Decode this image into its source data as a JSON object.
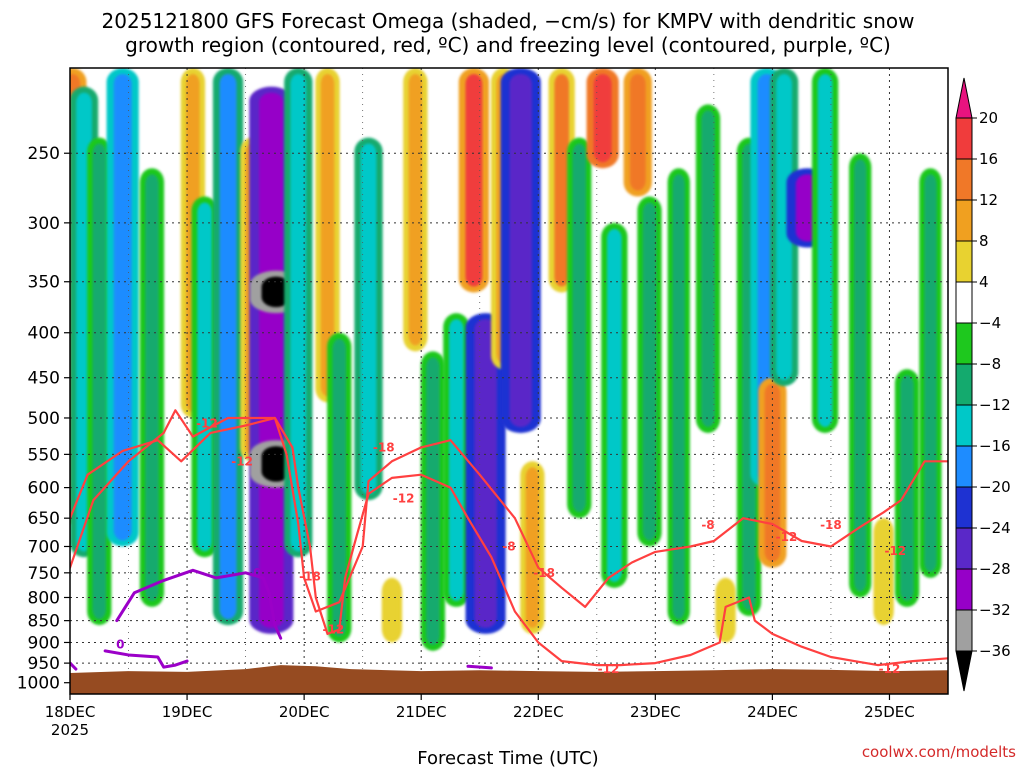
{
  "colors": {
    "snow_growth_contour": "#ff4040",
    "freezing_contour": "#9b00c8",
    "ground": "#964b21",
    "credit": "#d42a2a"
  },
  "chart_data": {
    "type": "heatmap",
    "title_lines": [
      "2025121800 GFS Forecast Omega (shaded, −cm/s) for KMPV with dendritic snow",
      "growth region (contoured, red, ºC) and freezing level (contoured, purple, ºC)"
    ],
    "xlabel": "Forecast Time (UTC)",
    "xticks": [
      {
        "label": "18DEC",
        "sub": "2025",
        "day": 0
      },
      {
        "label": "19DEC",
        "sub": "",
        "day": 1
      },
      {
        "label": "20DEC",
        "sub": "",
        "day": 2
      },
      {
        "label": "21DEC",
        "sub": "",
        "day": 3
      },
      {
        "label": "22DEC",
        "sub": "",
        "day": 4
      },
      {
        "label": "23DEC",
        "sub": "",
        "day": 5
      },
      {
        "label": "24DEC",
        "sub": "",
        "day": 6
      },
      {
        "label": "25DEC",
        "sub": "",
        "day": 7
      }
    ],
    "xlim_days": [
      0,
      7.5
    ],
    "y_scale": "log-pressure (hPa), inverted",
    "ylim_hpa": [
      1030,
      200
    ],
    "yticks": [
      250,
      300,
      350,
      400,
      450,
      500,
      550,
      600,
      650,
      700,
      750,
      800,
      850,
      900,
      950,
      1000
    ],
    "colorbar": {
      "levels": [
        20,
        16,
        12,
        8,
        4,
        -4,
        -8,
        -12,
        -16,
        -20,
        -24,
        -28,
        -32,
        -36
      ],
      "bins": [
        {
          "range": ">20",
          "color": "#e8137f"
        },
        {
          "range": "16 to 20",
          "color": "#f03c3c"
        },
        {
          "range": "12 to 16",
          "color": "#f07828"
        },
        {
          "range": "8 to 12",
          "color": "#f0a020"
        },
        {
          "range": "4 to 8",
          "color": "#e8d230"
        },
        {
          "range": "-4 to 4",
          "color": "#ffffff"
        },
        {
          "range": "-8 to -4",
          "color": "#1ec81e"
        },
        {
          "range": "-12 to -8",
          "color": "#14aa6e"
        },
        {
          "range": "-16 to -12",
          "color": "#00c8c8"
        },
        {
          "range": "-20 to -16",
          "color": "#1e8cff"
        },
        {
          "range": "-24 to -20",
          "color": "#1e32d2"
        },
        {
          "range": "-28 to -24",
          "color": "#5a28c8"
        },
        {
          "range": "-32 to -28",
          "color": "#9600c8"
        },
        {
          "range": "-36 to -32",
          "color": "#a0a0a0"
        },
        {
          "range": "<-36",
          "color": "#000000"
        }
      ]
    },
    "shading_bands": [
      {
        "day": 0.02,
        "p_top": 200,
        "p_bot": 660,
        "value": 14
      },
      {
        "day": 0.12,
        "p_top": 210,
        "p_bot": 720,
        "value": -14
      },
      {
        "day": 0.25,
        "p_top": 240,
        "p_bot": 860,
        "value": -10
      },
      {
        "day": 0.45,
        "p_top": 200,
        "p_bot": 700,
        "value": -18
      },
      {
        "day": 0.7,
        "p_top": 260,
        "p_bot": 820,
        "value": -10
      },
      {
        "day": 1.05,
        "p_top": 200,
        "p_bot": 500,
        "value": 10
      },
      {
        "day": 1.15,
        "p_top": 280,
        "p_bot": 720,
        "value": -12
      },
      {
        "day": 1.35,
        "p_top": 200,
        "p_bot": 860,
        "value": -16
      },
      {
        "day": 1.55,
        "p_top": 240,
        "p_bot": 560,
        "value": 8
      },
      {
        "day": 1.72,
        "p_top": 210,
        "p_bot": 880,
        "value": -30
      },
      {
        "day": 1.76,
        "p_top": 530,
        "p_bot": 600,
        "value": -38
      },
      {
        "day": 1.76,
        "p_top": 340,
        "p_bot": 380,
        "value": -38
      },
      {
        "day": 1.95,
        "p_top": 200,
        "p_bot": 720,
        "value": -14
      },
      {
        "day": 2.2,
        "p_top": 200,
        "p_bot": 480,
        "value": 10
      },
      {
        "day": 2.3,
        "p_top": 400,
        "p_bot": 900,
        "value": -10
      },
      {
        "day": 2.55,
        "p_top": 240,
        "p_bot": 620,
        "value": -14
      },
      {
        "day": 2.75,
        "p_top": 760,
        "p_bot": 900,
        "value": 6
      },
      {
        "day": 2.95,
        "p_top": 200,
        "p_bot": 420,
        "value": 10
      },
      {
        "day": 3.1,
        "p_top": 420,
        "p_bot": 920,
        "value": -10
      },
      {
        "day": 3.3,
        "p_top": 380,
        "p_bot": 820,
        "value": -12
      },
      {
        "day": 3.45,
        "p_top": 200,
        "p_bot": 360,
        "value": 16
      },
      {
        "day": 3.55,
        "p_top": 380,
        "p_bot": 880,
        "value": -26
      },
      {
        "day": 3.7,
        "p_top": 200,
        "p_bot": 440,
        "value": 10
      },
      {
        "day": 3.85,
        "p_top": 200,
        "p_bot": 520,
        "value": -26
      },
      {
        "day": 3.95,
        "p_top": 560,
        "p_bot": 880,
        "value": 10
      },
      {
        "day": 4.2,
        "p_top": 200,
        "p_bot": 360,
        "value": 12
      },
      {
        "day": 4.35,
        "p_top": 240,
        "p_bot": 650,
        "value": -10
      },
      {
        "day": 4.55,
        "p_top": 200,
        "p_bot": 260,
        "value": 18
      },
      {
        "day": 4.65,
        "p_top": 300,
        "p_bot": 780,
        "value": -12
      },
      {
        "day": 4.85,
        "p_top": 200,
        "p_bot": 280,
        "value": 14
      },
      {
        "day": 4.95,
        "p_top": 280,
        "p_bot": 700,
        "value": -10
      },
      {
        "day": 5.2,
        "p_top": 260,
        "p_bot": 860,
        "value": -8
      },
      {
        "day": 5.45,
        "p_top": 220,
        "p_bot": 520,
        "value": -10
      },
      {
        "day": 5.6,
        "p_top": 760,
        "p_bot": 900,
        "value": 6
      },
      {
        "day": 5.8,
        "p_top": 240,
        "p_bot": 840,
        "value": -10
      },
      {
        "day": 5.95,
        "p_top": 200,
        "p_bot": 600,
        "value": -18
      },
      {
        "day": 6.0,
        "p_top": 450,
        "p_bot": 740,
        "value": 14
      },
      {
        "day": 6.1,
        "p_top": 200,
        "p_bot": 460,
        "value": -14
      },
      {
        "day": 6.3,
        "p_top": 260,
        "p_bot": 320,
        "value": -28
      },
      {
        "day": 6.45,
        "p_top": 200,
        "p_bot": 520,
        "value": -12
      },
      {
        "day": 6.75,
        "p_top": 250,
        "p_bot": 800,
        "value": -8
      },
      {
        "day": 6.95,
        "p_top": 650,
        "p_bot": 860,
        "value": 6
      },
      {
        "day": 7.15,
        "p_top": 440,
        "p_bot": 820,
        "value": -10
      },
      {
        "day": 7.35,
        "p_top": 260,
        "p_bot": 760,
        "value": -8
      }
    ],
    "contours": [
      {
        "kind": "dendritic",
        "level": -12,
        "points": [
          [
            0,
            650
          ],
          [
            0.15,
            580
          ],
          [
            0.45,
            545
          ],
          [
            0.75,
            530
          ],
          [
            0.95,
            560
          ],
          [
            1.2,
            520
          ],
          [
            1.5,
            510
          ],
          [
            1.75,
            500
          ],
          [
            1.9,
            540
          ],
          [
            1.95,
            600
          ],
          [
            2.05,
            700
          ],
          [
            2.1,
            800
          ],
          [
            2.2,
            880
          ],
          [
            2.3,
            870
          ],
          [
            2.35,
            760
          ],
          [
            2.45,
            680
          ],
          [
            2.55,
            610
          ],
          [
            2.75,
            585
          ],
          [
            3.0,
            580
          ],
          [
            3.25,
            600
          ],
          [
            3.4,
            650
          ],
          [
            3.6,
            720
          ],
          [
            3.8,
            830
          ],
          [
            4.0,
            900
          ],
          [
            4.2,
            945
          ],
          [
            4.5,
            955
          ],
          [
            4.7,
            955
          ],
          [
            5.0,
            950
          ],
          [
            5.3,
            930
          ],
          [
            5.55,
            900
          ],
          [
            5.6,
            820
          ],
          [
            5.8,
            800
          ],
          [
            5.85,
            850
          ],
          [
            6.0,
            880
          ],
          [
            6.25,
            910
          ],
          [
            6.5,
            935
          ],
          [
            6.7,
            945
          ],
          [
            6.9,
            955
          ],
          [
            7.2,
            945
          ],
          [
            7.5,
            938
          ]
        ]
      },
      {
        "kind": "dendritic",
        "level": -18,
        "points": [
          [
            0,
            740
          ],
          [
            0.2,
            620
          ],
          [
            0.5,
            560
          ],
          [
            0.8,
            520
          ],
          [
            0.9,
            490
          ],
          [
            1.05,
            525
          ],
          [
            1.35,
            500
          ],
          [
            1.75,
            500
          ],
          [
            1.85,
            550
          ],
          [
            1.95,
            660
          ],
          [
            2.0,
            760
          ],
          [
            2.1,
            830
          ],
          [
            2.3,
            810
          ],
          [
            2.5,
            700
          ],
          [
            2.55,
            590
          ],
          [
            2.75,
            560
          ],
          [
            3.0,
            540
          ],
          [
            3.25,
            530
          ],
          [
            3.5,
            580
          ],
          [
            3.8,
            650
          ],
          [
            4.0,
            740
          ],
          [
            4.2,
            780
          ],
          [
            4.4,
            820
          ],
          [
            4.6,
            760
          ],
          [
            4.8,
            730
          ],
          [
            5.0,
            710
          ],
          [
            5.3,
            700
          ],
          [
            5.5,
            690
          ],
          [
            5.75,
            650
          ],
          [
            6.0,
            660
          ],
          [
            6.25,
            690
          ],
          [
            6.5,
            700
          ],
          [
            6.75,
            665
          ],
          [
            6.95,
            640
          ],
          [
            7.1,
            620
          ],
          [
            7.3,
            560
          ],
          [
            7.5,
            560
          ]
        ]
      },
      {
        "kind": "freezing",
        "level": 0,
        "points": [
          [
            0.4,
            850
          ],
          [
            0.55,
            790
          ],
          [
            0.8,
            765
          ],
          [
            1.05,
            745
          ],
          [
            1.25,
            760
          ],
          [
            1.5,
            750
          ],
          [
            1.65,
            760
          ],
          [
            1.7,
            790
          ],
          [
            1.75,
            860
          ],
          [
            1.8,
            890
          ]
        ]
      },
      {
        "kind": "freezing",
        "level": 0,
        "points": [
          [
            0.3,
            920
          ],
          [
            0.5,
            930
          ],
          [
            0.75,
            935
          ],
          [
            0.8,
            960
          ],
          [
            0.9,
            955
          ],
          [
            1.0,
            945
          ]
        ]
      },
      {
        "kind": "freezing",
        "level": 0,
        "points": [
          [
            0,
            950
          ],
          [
            0.05,
            965
          ]
        ]
      },
      {
        "kind": "freezing",
        "level": 0,
        "points": [
          [
            3.4,
            958
          ],
          [
            3.6,
            962
          ]
        ]
      }
    ],
    "contour_labels": [
      {
        "text": "-12",
        "kind": "dendritic",
        "day": 1.17,
        "p": 507
      },
      {
        "text": "-12",
        "kind": "dendritic",
        "day": 1.47,
        "p": 560
      },
      {
        "text": "-18",
        "kind": "dendritic",
        "day": 2.68,
        "p": 540
      },
      {
        "text": "-12",
        "kind": "dendritic",
        "day": 2.85,
        "p": 617
      },
      {
        "text": "-18",
        "kind": "dendritic",
        "day": 2.05,
        "p": 757
      },
      {
        "text": "-12",
        "kind": "dendritic",
        "day": 2.25,
        "p": 870
      },
      {
        "text": "-18",
        "kind": "dendritic",
        "day": 4.05,
        "p": 750
      },
      {
        "text": "-12",
        "kind": "dendritic",
        "day": 4.6,
        "p": 965
      },
      {
        "text": "-18",
        "kind": "dendritic",
        "day": 6.5,
        "p": 662
      },
      {
        "text": "-12",
        "kind": "dendritic",
        "day": 7.05,
        "p": 708
      },
      {
        "text": "-12",
        "kind": "dendritic",
        "day": 7.0,
        "p": 965
      },
      {
        "text": "-8",
        "kind": "dendritic",
        "day": 5.45,
        "p": 662
      },
      {
        "text": "-8",
        "kind": "dendritic",
        "day": 3.75,
        "p": 700
      },
      {
        "text": "-12",
        "kind": "dendritic",
        "day": 6.12,
        "p": 683
      },
      {
        "text": "0",
        "kind": "freezing",
        "day": 0.43,
        "p": 905
      },
      {
        "text": "0",
        "kind": "freezing",
        "day": 1.6,
        "p": 750
      }
    ],
    "ground": [
      [
        0,
        975
      ],
      [
        0.5,
        970
      ],
      [
        1.0,
        972
      ],
      [
        1.5,
        965
      ],
      [
        1.8,
        955
      ],
      [
        2.1,
        958
      ],
      [
        2.4,
        965
      ],
      [
        3.0,
        970
      ],
      [
        3.5,
        968
      ],
      [
        4.0,
        970
      ],
      [
        4.5,
        972
      ],
      [
        5.0,
        970
      ],
      [
        5.5,
        968
      ],
      [
        6.0,
        965
      ],
      [
        6.5,
        967
      ],
      [
        7.0,
        970
      ],
      [
        7.5,
        968
      ]
    ],
    "credit": "coolwx.com/modelts"
  }
}
